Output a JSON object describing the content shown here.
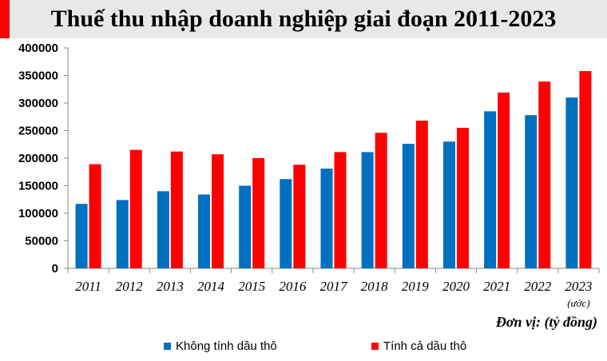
{
  "title": "Thuế thu nhập doanh nghiệp giai đoạn 2011-2023",
  "unit_label": "Đơn vị: (tỷ đồng)",
  "chart_data": {
    "type": "bar",
    "title": "Thuế thu nhập doanh nghiệp giai đoạn 2011-2023",
    "categories": [
      "2011",
      "2012",
      "2013",
      "2014",
      "2015",
      "2016",
      "2017",
      "2018",
      "2019",
      "2020",
      "2021",
      "2022",
      "2023"
    ],
    "category_notes": {
      "2023": "(ước)"
    },
    "yticks": [
      "0",
      "50000",
      "100000",
      "150000",
      "200000",
      "250000",
      "300000",
      "350000",
      "400000"
    ],
    "ylim": [
      0,
      400000
    ],
    "grid": false,
    "legend": "bottom",
    "series": [
      {
        "name": "Không tính dầu thô",
        "color": "#0070c0",
        "values": [
          117000,
          124000,
          140000,
          134000,
          150000,
          162000,
          181000,
          211000,
          226000,
          230000,
          285000,
          278000,
          310000
        ]
      },
      {
        "name": "Tính cả dầu thô",
        "color": "#ff0000",
        "values": [
          189000,
          215000,
          212000,
          207000,
          200000,
          188000,
          211000,
          246000,
          268000,
          255000,
          319000,
          339000,
          358000
        ]
      }
    ]
  }
}
